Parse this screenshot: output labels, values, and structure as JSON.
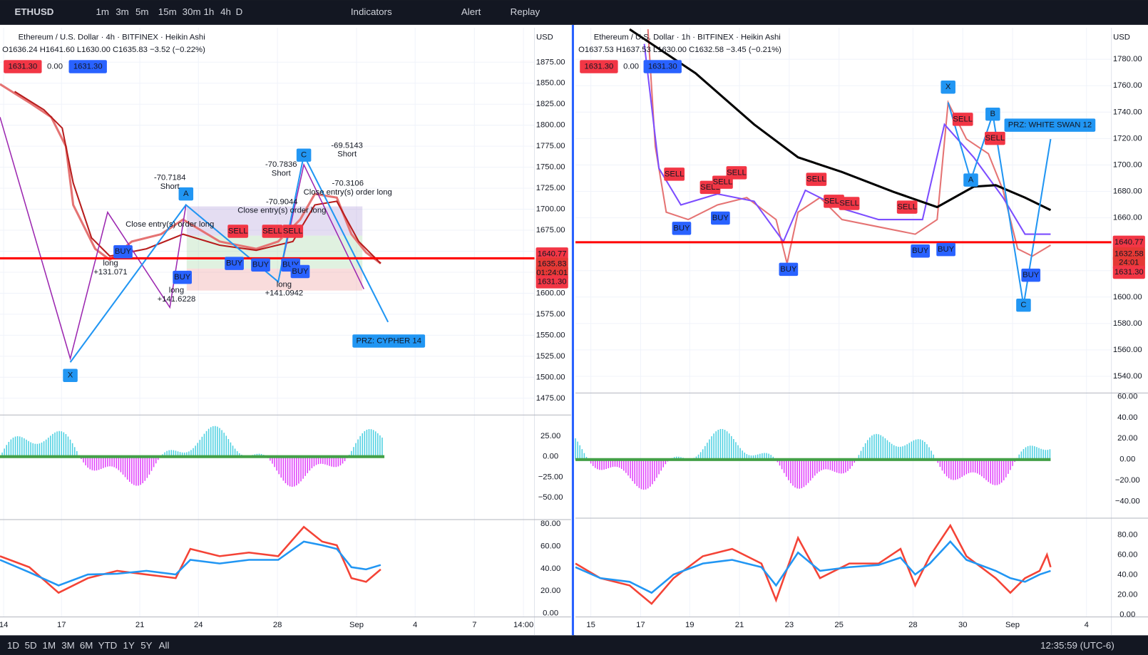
{
  "toolbar": {
    "symbol": "ETHUSD",
    "intervals": [
      "1m",
      "3m",
      "5m",
      "15m",
      "30m",
      "1h",
      "4h",
      "D"
    ],
    "indicators": "Indicators",
    "alert": "Alert",
    "replay": "Replay"
  },
  "panels": [
    {
      "title": "Ethereum / U.S. Dollar · 4h · BITFINEX · Heikin Ashi",
      "ohlc": "O1636.24 H1641.60 L1630.00 C1635.83 −3.52 (−0.22%)",
      "bid": "1631.30",
      "spread": "0.00",
      "ask": "1631.30",
      "currency": "USD",
      "price_ticks": [
        "1875.00",
        "1850.00",
        "1825.00",
        "1800.00",
        "1775.00",
        "1750.00",
        "1725.00",
        "1700.00",
        "1675.00",
        "1650.00",
        "1625.00",
        "1600.00",
        "1575.00",
        "1550.00",
        "1525.00",
        "1500.00",
        "1475.00"
      ],
      "osc_ticks": [
        "25.00",
        "0.00",
        "−25.00",
        "−50.00"
      ],
      "rsi_ticks": [
        "80.00",
        "60.00",
        "40.00",
        "20.00",
        "0.00"
      ],
      "dates": [
        "14",
        "17",
        "21",
        "24",
        "28",
        "Sep",
        "4",
        "7",
        "14:00"
      ],
      "price_tags": [
        "1640.77",
        "1635.83",
        "01:24:01",
        "1631.30"
      ],
      "points": [
        "X",
        "A",
        "C"
      ],
      "prz": "PRZ: CYPHER 14",
      "notes": [
        "-70.7184",
        "Short",
        "-70.7836",
        "Short",
        "-69.5143",
        "Short",
        "-70.3106",
        "Close entry(s) order long",
        "-70.9044",
        "Close entry(s) order long",
        "Close entry(s) order long",
        "long",
        "+131.071",
        "long",
        "+141.6228",
        "long",
        "+141.0942"
      ],
      "buy": [
        "BUY",
        "BUY",
        "BUY",
        "BUY",
        "BUY",
        "BUY"
      ],
      "sell": [
        "SELL",
        "SELL",
        "SELL"
      ]
    },
    {
      "title": "Ethereum / U.S. Dollar · 1h · BITFINEX · Heikin Ashi",
      "ohlc": "O1637.53 H1637.53 L1630.00 C1632.58 −3.45 (−0.21%)",
      "bid": "1631.30",
      "spread": "0.00",
      "ask": "1631.30",
      "currency": "USD",
      "price_ticks": [
        "1780.00",
        "1760.00",
        "1740.00",
        "1720.00",
        "1700.00",
        "1680.00",
        "1660.00",
        "1640.00",
        "1620.00",
        "1600.00",
        "1580.00",
        "1560.00",
        "1540.00"
      ],
      "osc_ticks": [
        "60.00",
        "40.00",
        "20.00",
        "0.00",
        "−20.00",
        "−40.00"
      ],
      "rsi_ticks": [
        "80.00",
        "60.00",
        "40.00",
        "20.00",
        "0.00"
      ],
      "dates": [
        "15",
        "17",
        "19",
        "21",
        "23",
        "25",
        "28",
        "30",
        "Sep",
        "4"
      ],
      "price_tags": [
        "1640.77",
        "1632.58",
        "24:01",
        "1631.30"
      ],
      "points": [
        "X",
        "A",
        "B",
        "C"
      ],
      "prz": "PRZ: WHITE SWAN 12",
      "buy": [
        "BUY",
        "BUY",
        "BUY",
        "BUY",
        "BUY",
        "BUY"
      ],
      "sell": [
        "SELL",
        "SELL",
        "SELL",
        "SELL",
        "SELL",
        "SELL",
        "SELL",
        "SELL",
        "SELL",
        "SELL"
      ]
    }
  ],
  "bottom": {
    "ranges": [
      "1D",
      "5D",
      "1M",
      "3M",
      "6M",
      "YTD",
      "1Y",
      "5Y",
      "All"
    ],
    "clock": "12:35:59 (UTC-6)"
  }
}
